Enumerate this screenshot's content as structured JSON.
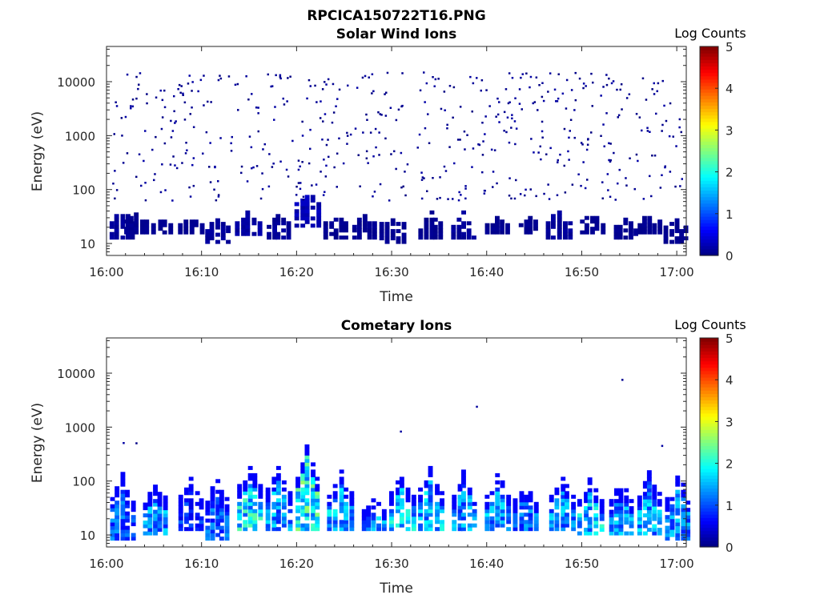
{
  "figure": {
    "title": "RPCICA150722T16.PNG"
  },
  "colorbar": {
    "label": "Log Counts",
    "range": [
      0,
      5
    ],
    "ticks": [
      "0",
      "1",
      "2",
      "3",
      "4",
      "5"
    ],
    "colormap": "jet",
    "colors": [
      "#00008f",
      "#0000ff",
      "#00ffff",
      "#ffff00",
      "#ff0000",
      "#800000"
    ]
  },
  "chart_data": [
    {
      "type": "heatmap",
      "title": "Solar Wind Ions",
      "xlabel": "Time",
      "ylabel": "Energy (eV)",
      "yscale": "log",
      "xlim": [
        "16:00",
        "17:01"
      ],
      "ylim": [
        6,
        45000
      ],
      "xticks": [
        "16:00",
        "16:10",
        "16:20",
        "16:30",
        "16:40",
        "16:50",
        "17:00"
      ],
      "yticks": [
        "10",
        "100",
        "1000",
        "10000"
      ],
      "dominant_level": 0,
      "bands": [
        {
          "t": 1.5,
          "emin": 12,
          "emax": 40,
          "level": 0.15
        },
        {
          "t": 3.0,
          "emin": 15,
          "emax": 35,
          "level": 0.1
        },
        {
          "t": 6.0,
          "emin": 15,
          "emax": 30,
          "level": 0.1
        },
        {
          "t": 8.8,
          "emin": 15,
          "emax": 30,
          "level": 0.1
        },
        {
          "t": 11.5,
          "emin": 10,
          "emax": 30,
          "level": 0.15
        },
        {
          "t": 14.8,
          "emin": 14,
          "emax": 40,
          "level": 0.2
        },
        {
          "t": 18.0,
          "emin": 12,
          "emax": 40,
          "level": 0.15
        },
        {
          "t": 21.0,
          "emin": 20,
          "emax": 100,
          "level": 0.3
        },
        {
          "t": 24.0,
          "emin": 12,
          "emax": 35,
          "level": 0.1
        },
        {
          "t": 27.0,
          "emin": 12,
          "emax": 40,
          "level": 0.1
        },
        {
          "t": 30.0,
          "emin": 10,
          "emax": 35,
          "level": 0.1
        },
        {
          "t": 34.0,
          "emin": 12,
          "emax": 40,
          "level": 0.1
        },
        {
          "t": 37.5,
          "emin": 12,
          "emax": 40,
          "level": 0.15
        },
        {
          "t": 41.0,
          "emin": 15,
          "emax": 30,
          "level": 0.1
        },
        {
          "t": 44.5,
          "emin": 15,
          "emax": 30,
          "level": 0.1
        },
        {
          "t": 47.5,
          "emin": 12,
          "emax": 40,
          "level": 0.15
        },
        {
          "t": 51.0,
          "emin": 15,
          "emax": 35,
          "level": 0.1
        },
        {
          "t": 54.5,
          "emin": 12,
          "emax": 30,
          "level": 0.1
        },
        {
          "t": 57.0,
          "emin": 15,
          "emax": 35,
          "level": 0.1
        },
        {
          "t": 59.8,
          "emin": 10,
          "emax": 30,
          "level": 0.1
        }
      ],
      "scatter": {
        "count": 520,
        "emin": 60,
        "emax": 15000,
        "level": 0
      }
    },
    {
      "type": "heatmap",
      "title": "Cometary Ions",
      "xlabel": "Time",
      "ylabel": "Energy (eV)",
      "yscale": "log",
      "xlim": [
        "16:00",
        "17:01"
      ],
      "ylim": [
        6,
        45000
      ],
      "xticks": [
        "16:00",
        "16:10",
        "16:20",
        "16:30",
        "16:40",
        "16:50",
        "17:00"
      ],
      "yticks": [
        "10",
        "100",
        "1000",
        "10000"
      ],
      "dominant_level": 1,
      "bands": [
        {
          "t": 1.5,
          "emin": 8,
          "emax": 150,
          "level": 1.2
        },
        {
          "t": 5.0,
          "emin": 10,
          "emax": 120,
          "level": 1.5
        },
        {
          "t": 8.8,
          "emin": 12,
          "emax": 120,
          "level": 1.0
        },
        {
          "t": 11.5,
          "emin": 8,
          "emax": 150,
          "level": 1.2
        },
        {
          "t": 15.0,
          "emin": 12,
          "emax": 250,
          "level": 2.0
        },
        {
          "t": 18.0,
          "emin": 12,
          "emax": 200,
          "level": 1.5
        },
        {
          "t": 21.0,
          "emin": 12,
          "emax": 500,
          "level": 2.2
        },
        {
          "t": 24.5,
          "emin": 12,
          "emax": 150,
          "level": 1.7
        },
        {
          "t": 28.0,
          "emin": 12,
          "emax": 60,
          "level": 1.5
        },
        {
          "t": 31.0,
          "emin": 12,
          "emax": 150,
          "level": 1.8
        },
        {
          "t": 34.0,
          "emin": 12,
          "emax": 180,
          "level": 1.7
        },
        {
          "t": 37.5,
          "emin": 12,
          "emax": 150,
          "level": 1.5
        },
        {
          "t": 41.0,
          "emin": 12,
          "emax": 150,
          "level": 1.6
        },
        {
          "t": 44.0,
          "emin": 12,
          "emax": 100,
          "level": 1.3
        },
        {
          "t": 47.8,
          "emin": 12,
          "emax": 150,
          "level": 1.5
        },
        {
          "t": 50.8,
          "emin": 10,
          "emax": 120,
          "level": 1.8
        },
        {
          "t": 54.0,
          "emin": 10,
          "emax": 120,
          "level": 1.5
        },
        {
          "t": 57.0,
          "emin": 10,
          "emax": 180,
          "level": 1.6
        },
        {
          "t": 60.0,
          "emin": 8,
          "emax": 150,
          "level": 1.5
        }
      ],
      "scatter": {
        "count": 6,
        "emin": 100,
        "emax": 10000,
        "level": 0
      }
    }
  ]
}
